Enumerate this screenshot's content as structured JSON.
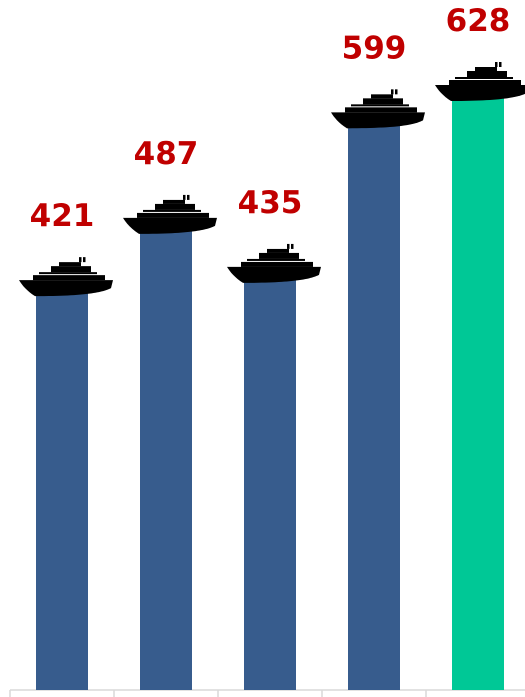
{
  "chart_data": {
    "type": "bar",
    "title": "",
    "xlabel": "",
    "ylabel": "",
    "categories": [
      "",
      "",
      "",
      "",
      ""
    ],
    "values": [
      421,
      487,
      435,
      599,
      628
    ],
    "value_labels": [
      "421",
      "487",
      "435",
      "599",
      "628"
    ],
    "ylim": [
      0,
      628
    ],
    "grid": false,
    "legend": "none",
    "highlight_index": 4,
    "icon": "cruise-ship-icon"
  },
  "colors": {
    "bar": "#375c8d",
    "bar_highlight": "#00c896",
    "label": "#c00000",
    "icon": "#000000",
    "axis": "#d9d9d9"
  }
}
